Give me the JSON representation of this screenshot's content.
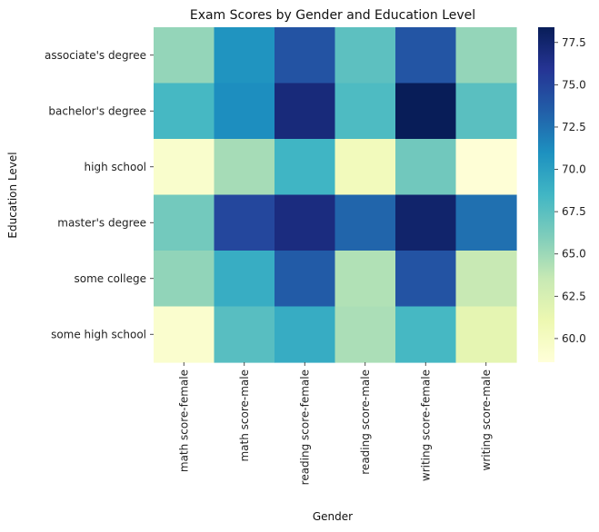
{
  "chart_data": {
    "type": "heatmap",
    "title": "Exam Scores by Gender and Education Level",
    "xlabel": "Gender",
    "ylabel": "Education Level",
    "x_categories": [
      "math score-female",
      "math score-male",
      "reading score-female",
      "reading score-male",
      "writing score-female",
      "writing score-male"
    ],
    "y_categories": [
      "associate's degree",
      "bachelor's degree",
      "high school",
      "master's degree",
      "some college",
      "some high school"
    ],
    "values": [
      [
        65.3,
        70.8,
        74.1,
        67.4,
        74.0,
        65.3
      ],
      [
        68.3,
        71.1,
        77.0,
        68.0,
        78.4,
        67.5
      ],
      [
        59.4,
        64.7,
        68.6,
        60.4,
        66.6,
        58.8
      ],
      [
        66.5,
        74.8,
        76.8,
        73.1,
        77.6,
        72.6
      ],
      [
        65.4,
        69.1,
        73.6,
        64.3,
        74.1,
        63.5
      ],
      [
        59.3,
        67.6,
        69.2,
        64.5,
        68.3,
        61.6
      ]
    ],
    "colorscale": "YlGnBu",
    "vmin": 58.6,
    "vmax": 78.4,
    "colorbar_ticks": [
      60.0,
      62.5,
      65.0,
      67.5,
      70.0,
      72.5,
      75.0,
      77.5
    ],
    "colorbar_tick_labels": [
      "60.0",
      "62.5",
      "65.0",
      "67.5",
      "70.0",
      "72.5",
      "75.0",
      "77.5"
    ],
    "grid": false
  }
}
